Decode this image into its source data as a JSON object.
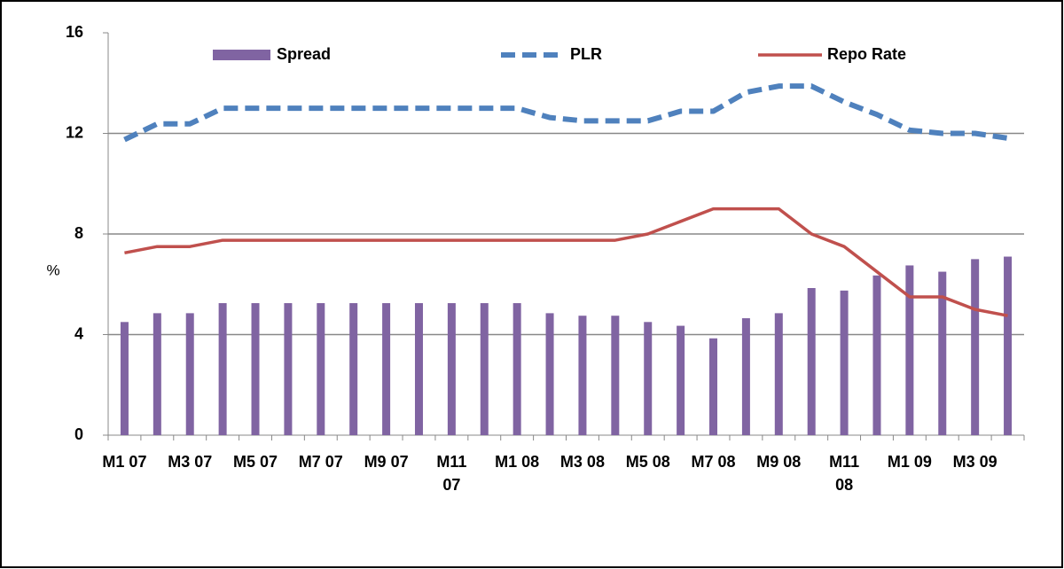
{
  "chart_data": {
    "type": "bar-line",
    "y_label": "%",
    "categories": [
      "M1 07",
      null,
      "M3 07",
      null,
      "M5 07",
      null,
      "M7 07",
      null,
      "M9 07",
      null,
      "M11 07",
      null,
      "M1 08",
      null,
      "M3 08",
      null,
      "M5 08",
      null,
      "M7 08",
      null,
      "M9 08",
      null,
      "M11 08",
      null,
      "M1 09",
      null,
      "M3 09",
      null
    ],
    "series": [
      {
        "name": "Spread",
        "type": "bar",
        "color": "#8064a2",
        "values": [
          4.5,
          4.85,
          4.85,
          5.25,
          5.25,
          5.25,
          5.25,
          5.25,
          5.25,
          5.25,
          5.25,
          5.25,
          5.25,
          4.85,
          4.75,
          4.75,
          4.5,
          4.35,
          3.85,
          4.65,
          4.85,
          5.85,
          5.75,
          6.35,
          6.75,
          6.5,
          7.0,
          7.1
        ]
      },
      {
        "name": "PLR",
        "type": "line",
        "dashed": true,
        "color": "#4f81bd",
        "values": [
          11.75,
          12.38,
          12.38,
          13,
          13,
          13,
          13,
          13,
          13,
          13,
          13,
          13,
          13,
          12.63,
          12.5,
          12.5,
          12.5,
          12.88,
          12.88,
          13.63,
          13.88,
          13.88,
          13.25,
          12.75,
          12.13,
          12,
          12,
          11.81
        ]
      },
      {
        "name": "Repo Rate",
        "type": "line",
        "dashed": false,
        "color": "#c0504d",
        "values": [
          7.25,
          7.5,
          7.5,
          7.75,
          7.75,
          7.75,
          7.75,
          7.75,
          7.75,
          7.75,
          7.75,
          7.75,
          7.75,
          7.75,
          7.75,
          7.75,
          8.0,
          8.5,
          9.0,
          9.0,
          9.0,
          8.0,
          7.5,
          6.5,
          5.5,
          5.5,
          5.0,
          4.75
        ]
      }
    ],
    "ylim": [
      0,
      16
    ],
    "yticks": [
      0,
      4,
      8,
      12,
      16
    ],
    "grid": true,
    "legend": "top"
  }
}
